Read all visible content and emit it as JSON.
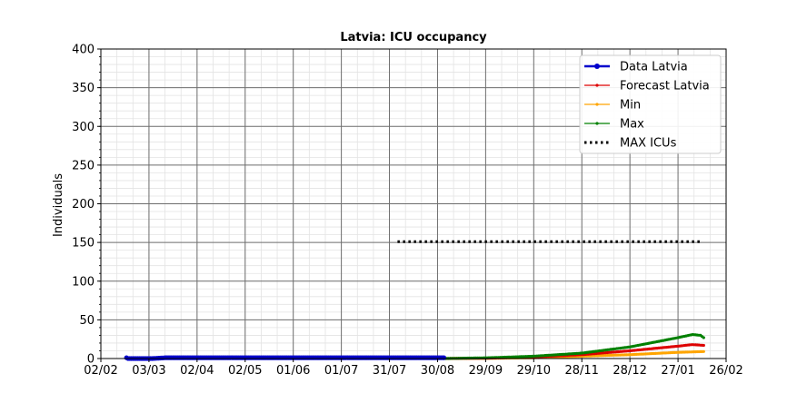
{
  "chart_data": {
    "type": "line",
    "title": "Latvia: ICU occupancy",
    "xlabel": "",
    "ylabel": "Individuals",
    "x_axis": {
      "type": "date",
      "start": "2020-02-02",
      "end": "2021-02-26",
      "tick_dates": [
        "2020-02-02",
        "2020-03-03",
        "2020-04-02",
        "2020-05-02",
        "2020-06-01",
        "2020-07-01",
        "2020-07-31",
        "2020-08-30",
        "2020-09-29",
        "2020-10-29",
        "2020-11-28",
        "2020-12-28",
        "2021-01-27",
        "2021-02-26"
      ],
      "tick_labels": [
        "02/02",
        "03/03",
        "02/04",
        "02/05",
        "01/06",
        "01/07",
        "31/07",
        "30/08",
        "29/09",
        "29/10",
        "28/11",
        "28/12",
        "27/01",
        "26/02"
      ]
    },
    "ylim": [
      0,
      400
    ],
    "y_ticks": [
      0,
      50,
      100,
      150,
      200,
      250,
      300,
      350,
      400
    ],
    "grid": true,
    "legend_position": "top-right",
    "series": [
      {
        "name": "Data Latvia",
        "color": "#0000cc",
        "style": "data",
        "points": [
          [
            "2020-02-18",
            1
          ],
          [
            "2020-02-19",
            0
          ],
          [
            "2020-02-27",
            0
          ],
          [
            "2020-03-05",
            0
          ],
          [
            "2020-03-13",
            1
          ],
          [
            "2020-03-18",
            1
          ],
          [
            "2020-04-01",
            1
          ],
          [
            "2020-05-01",
            1
          ],
          [
            "2020-06-01",
            1
          ],
          [
            "2020-07-01",
            1
          ],
          [
            "2020-08-01",
            1
          ],
          [
            "2020-08-30",
            1
          ],
          [
            "2020-09-03",
            1
          ]
        ]
      },
      {
        "name": "Forecast Latvia",
        "color": "#dd0000",
        "style": "forecast",
        "points": [
          [
            "2020-09-03",
            0
          ],
          [
            "2020-10-01",
            0.5
          ],
          [
            "2020-10-29",
            2
          ],
          [
            "2020-11-28",
            5
          ],
          [
            "2020-12-28",
            10
          ],
          [
            "2021-01-12",
            13
          ],
          [
            "2021-01-27",
            16
          ],
          [
            "2021-02-05",
            18
          ],
          [
            "2021-02-12",
            17
          ]
        ]
      },
      {
        "name": "Min",
        "color": "#ffa500",
        "style": "forecast",
        "points": [
          [
            "2020-09-03",
            0
          ],
          [
            "2020-10-01",
            0.3
          ],
          [
            "2020-10-29",
            1
          ],
          [
            "2020-11-28",
            3
          ],
          [
            "2020-12-28",
            5
          ],
          [
            "2021-01-27",
            8
          ],
          [
            "2021-02-12",
            9
          ]
        ]
      },
      {
        "name": "Max",
        "color": "#008000",
        "style": "forecast",
        "points": [
          [
            "2020-09-03",
            0
          ],
          [
            "2020-10-01",
            1
          ],
          [
            "2020-10-29",
            3
          ],
          [
            "2020-11-28",
            7
          ],
          [
            "2020-12-28",
            15
          ],
          [
            "2021-01-12",
            21
          ],
          [
            "2021-01-27",
            27
          ],
          [
            "2021-02-05",
            31
          ],
          [
            "2021-02-10",
            30
          ],
          [
            "2021-02-12",
            27
          ]
        ]
      },
      {
        "name": "MAX ICUs",
        "color": "#000000",
        "style": "dotted",
        "points": [
          [
            "2020-08-05",
            151
          ],
          [
            "2021-02-10",
            151
          ]
        ]
      }
    ]
  }
}
